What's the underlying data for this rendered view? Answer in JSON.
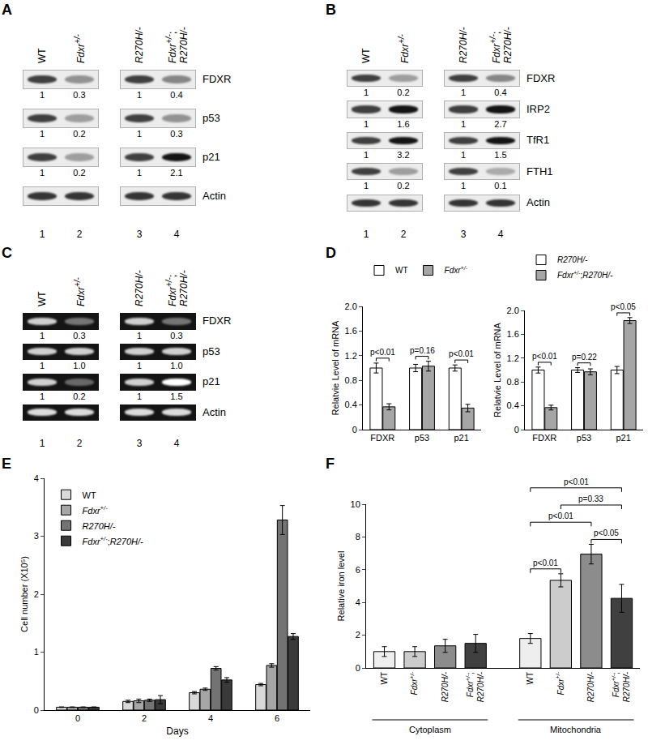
{
  "blots": [
    {
      "label": "A",
      "lanes": [
        "WT",
        "Fdxr+/-",
        "R270H/-",
        "Fdxr+/-;R270H/-"
      ],
      "lane_numbers": [
        1,
        2,
        3,
        4
      ],
      "rows": [
        {
          "name": "FDXR",
          "values": [
            1,
            0.3,
            1,
            0.4
          ]
        },
        {
          "name": "p53",
          "values": [
            1,
            0.2,
            1,
            0.3
          ]
        },
        {
          "name": "p21",
          "values": [
            1,
            0.2,
            1,
            2.1
          ]
        },
        {
          "name": "Actin"
        }
      ]
    },
    {
      "label": "B",
      "lanes": [
        "WT",
        "Fdxr+/-",
        "R270H/-",
        "Fdxr+/-;R270H/-"
      ],
      "lane_numbers": [
        1,
        2,
        3,
        4
      ],
      "rows": [
        {
          "name": "FDXR",
          "values": [
            1,
            0.2,
            1,
            0.4
          ]
        },
        {
          "name": "IRP2",
          "values": [
            1,
            1.6,
            1,
            2.7
          ]
        },
        {
          "name": "TfR1",
          "values": [
            1,
            3.2,
            1,
            1.5
          ]
        },
        {
          "name": "FTH1",
          "values": [
            1,
            0.2,
            1,
            0.1
          ]
        },
        {
          "name": "Actin"
        }
      ]
    },
    {
      "label": "C",
      "lanes": [
        "WT",
        "Fdxr+/-",
        "R270H/-",
        "Fdxr+/-;R270H/-"
      ],
      "lane_numbers": [
        1,
        2,
        3,
        4
      ],
      "rows": [
        {
          "name": "FDXR",
          "values": [
            1,
            0.3,
            1,
            0.3
          ]
        },
        {
          "name": "p53",
          "values": [
            1,
            1.0,
            1,
            1.0
          ],
          "value_labels": [
            "1",
            "1.0",
            "1",
            "1.0"
          ]
        },
        {
          "name": "p21",
          "values": [
            1,
            0.2,
            1,
            1.5
          ]
        },
        {
          "name": "Actin"
        }
      ]
    }
  ],
  "chart_data": [
    {
      "label": "D",
      "type": "bar",
      "categories": [
        "FDXR",
        "p53",
        "p21"
      ],
      "y_label": "Relatvie Level of mRNA",
      "ylim": [
        0,
        2
      ],
      "yticks": [
        0,
        0.4,
        0.8,
        1.2,
        1.6,
        {
          "value": 2,
          "label": "2.0"
        }
      ],
      "grid": false,
      "legend": "top",
      "series": [
        {
          "name": "WT",
          "color": "#ffffff",
          "values": [
            1,
            1,
            1
          ],
          "errors": [
            0.08,
            0.06,
            0.05
          ]
        },
        {
          "name": "Fdxr+/-",
          "color": "#a6a6a6",
          "values": [
            0.37,
            1.03,
            0.35
          ],
          "errors": [
            0.05,
            0.08,
            0.06
          ]
        }
      ],
      "annotations": [
        {
          "text": "p<0.01",
          "category": "FDXR"
        },
        {
          "text": "p=0.16",
          "category": "p53"
        },
        {
          "text": "p<0.01",
          "category": "p21"
        }
      ]
    },
    {
      "type": "bar",
      "categories": [
        "FDXR",
        "p53",
        "p21"
      ],
      "y_label": "Relatvie Level of mRNA",
      "ylim": [
        0,
        2
      ],
      "yticks": [
        0,
        0.4,
        0.8,
        1.2,
        1.6,
        {
          "value": 2,
          "label": "2.0"
        }
      ],
      "grid": false,
      "legend": "top",
      "series": [
        {
          "name": "R270H/-",
          "color": "#ffffff",
          "values": [
            1,
            1,
            1
          ],
          "errors": [
            0.05,
            0.04,
            0.06
          ]
        },
        {
          "name": "Fdxr+/-;R270H/-",
          "color": "#a6a6a6",
          "values": [
            0.37,
            0.97,
            1.83
          ],
          "errors": [
            0.04,
            0.05,
            0.05
          ]
        }
      ],
      "annotations": [
        {
          "text": "p<0.01",
          "category": "FDXR"
        },
        {
          "text": "p=0.22",
          "category": "p53"
        },
        {
          "text": "p<0.05",
          "category": "p21"
        }
      ]
    },
    {
      "label": "E",
      "type": "bar",
      "categories": [
        "0",
        "2",
        "4",
        "6"
      ],
      "x_label": "Days",
      "y_label": "Cell number (X10⁵)",
      "ylim": [
        0,
        4
      ],
      "yticks": [
        0,
        1,
        2,
        3,
        4
      ],
      "grid": false,
      "legend": "top left",
      "series": [
        {
          "name": "WT",
          "color": "#d9d9d9",
          "values": [
            0.05,
            0.15,
            0.3,
            0.44
          ],
          "errors": [
            0.005,
            0.02,
            0.02,
            0.02
          ]
        },
        {
          "name": "Fdxr+/-",
          "color": "#a6a6a6",
          "values": [
            0.05,
            0.16,
            0.36,
            0.77
          ],
          "errors": [
            0.005,
            0.03,
            0.02,
            0.03
          ]
        },
        {
          "name": "R270H/-",
          "color": "#737373",
          "values": [
            0.05,
            0.17,
            0.72,
            3.28
          ],
          "errors": [
            0.005,
            0.02,
            0.03,
            0.25
          ]
        },
        {
          "name": "Fdxr+/-;R270H/-",
          "color": "#3a3a3a",
          "values": [
            0.05,
            0.18,
            0.52,
            1.27
          ],
          "errors": [
            0.005,
            0.07,
            0.04,
            0.05
          ]
        }
      ]
    },
    {
      "label": "F",
      "type": "bar",
      "categories": [
        "WT",
        "Fdxr+/-",
        "R270H/-",
        "Fdxr+/-;R270H/-",
        "WT",
        "Fdxr+/-",
        "R270H/-",
        "Fdxr+/-;R270H/-"
      ],
      "values": [
        1.0,
        1.0,
        1.35,
        1.5,
        1.8,
        5.35,
        6.95,
        4.25
      ],
      "errors": [
        0.3,
        0.3,
        0.4,
        0.55,
        0.3,
        0.4,
        0.6,
        0.85
      ],
      "colors": [
        "#eeeeee",
        "#cccccc",
        "#8c8c8c",
        "#404040",
        "#eeeeee",
        "#cccccc",
        "#8c8c8c",
        "#404040"
      ],
      "groups": [
        {
          "label": "Cytoplasm",
          "count": 4
        },
        {
          "label": "Mitochondria",
          "count": 4
        }
      ],
      "comparisons": [
        {
          "between": [
            4,
            5
          ],
          "text": "p<0.01"
        },
        {
          "between": [
            6,
            7
          ],
          "text": "p<0.05"
        },
        {
          "between": [
            4,
            6
          ],
          "text": "p<0.01"
        },
        {
          "between": [
            5,
            7
          ],
          "text": "p=0.33"
        },
        {
          "between": [
            4,
            7
          ],
          "text": "p<0.01"
        }
      ],
      "y_label": "Relative iron level",
      "ylim": [
        0,
        10
      ],
      "yticks": [
        0,
        2,
        4,
        6,
        8,
        10
      ],
      "grid": false
    }
  ]
}
